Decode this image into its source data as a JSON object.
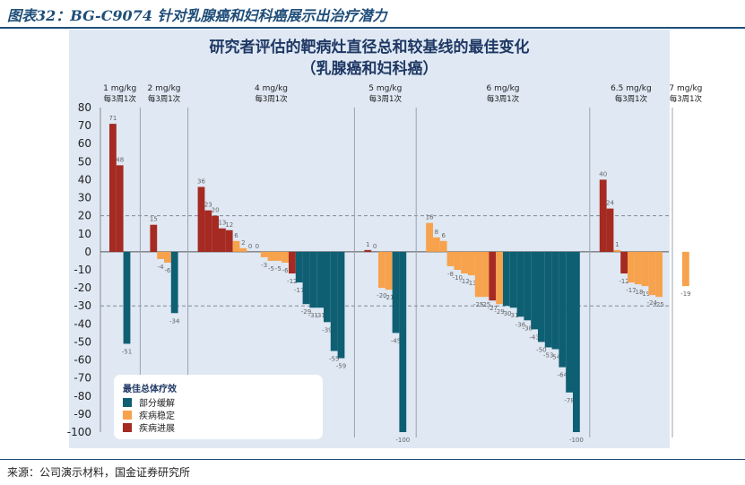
{
  "figure_title": "图表32：BG-C9074 针对乳腺癌和妇科癌展示出治疗潜力",
  "source": "来源：公司演示材料，国金证券研究所",
  "chart_data": {
    "type": "bar",
    "title": "研究者评估的靶病灶直径总和较基线的最佳变化",
    "subtitle": "（乳腺癌和妇科癌）",
    "ylim": [
      -100,
      80
    ],
    "yticks": [
      80,
      70,
      60,
      50,
      40,
      30,
      20,
      10,
      0,
      -10,
      -20,
      -30,
      -40,
      -50,
      -60,
      -70,
      -80,
      -90,
      -100
    ],
    "reference_lines": [
      20,
      -30
    ],
    "legend": {
      "title": "最佳总体疗效",
      "entries": [
        {
          "name": "部分缓解",
          "color": "#0f5f73"
        },
        {
          "name": "疾病稳定",
          "color": "#f7a24c"
        },
        {
          "name": "疾病进展",
          "color": "#a52a22"
        }
      ],
      "position": "bottom-left"
    },
    "groups": [
      {
        "dose": "1 mg/kg",
        "schedule": "每3周1次",
        "values": [
          71,
          48,
          -51
        ],
        "types": [
          "PD",
          "PD",
          "PR"
        ],
        "labels": [
          "71",
          "48",
          "-51"
        ]
      },
      {
        "dose": "2 mg/kg",
        "schedule": "每3周1次",
        "values": [
          15,
          -4,
          -6,
          -34
        ],
        "types": [
          "PD",
          "SD",
          "SD",
          "PR"
        ],
        "labels": [
          "15",
          "-4",
          "-6",
          "-34"
        ]
      },
      {
        "dose": "4 mg/kg",
        "schedule": "每3周1次",
        "values": [
          36,
          23,
          20,
          13,
          12,
          6,
          2,
          0,
          0,
          -3,
          -5,
          -5,
          -6,
          -12,
          -17,
          -29,
          -31,
          -31,
          -39,
          -55,
          -59
        ],
        "types": [
          "PD",
          "PD",
          "PD",
          "PD",
          "PD",
          "SD",
          "SD",
          "SD",
          "SD",
          "SD",
          "SD",
          "SD",
          "SD",
          "PD",
          "PR",
          "PR",
          "PR",
          "PR",
          "PR",
          "PR",
          "PR"
        ],
        "labels": [
          "36",
          "23",
          "20",
          "13",
          "12",
          "6",
          "2",
          "0",
          "0",
          "-3",
          "-5",
          "-5",
          "-6",
          "-12",
          "-17",
          "-29",
          "-31",
          "-31",
          "-39",
          "-55",
          "-59"
        ]
      },
      {
        "dose": "5 mg/kg",
        "schedule": "每3周1次",
        "values": [
          1,
          0,
          -20,
          -21,
          -45,
          -100
        ],
        "types": [
          "PD",
          "SD",
          "SD",
          "SD",
          "PR",
          "PR"
        ],
        "labels": [
          "1",
          "0",
          "-20",
          "-21",
          "-45",
          "-100"
        ]
      },
      {
        "dose": "6 mg/kg",
        "schedule": "每3周1次",
        "values": [
          16,
          8,
          6,
          -8,
          -10,
          -12,
          -13,
          -25,
          -25,
          -27,
          -29,
          -30,
          -31,
          -36,
          -38,
          -43,
          -50,
          -53,
          -54,
          -64,
          -78,
          -100
        ],
        "types": [
          "SD",
          "SD",
          "SD",
          "SD",
          "SD",
          "SD",
          "SD",
          "SD",
          "SD",
          "PD",
          "SD",
          "PR",
          "PR",
          "PR",
          "PR",
          "PR",
          "PR",
          "PR",
          "PR",
          "PR",
          "PR",
          "PR"
        ],
        "labels": [
          "16",
          "8",
          "6",
          "-8",
          "-10",
          "-12",
          "-13",
          "-25",
          "-25",
          "-27",
          "-29",
          "-30",
          "-31",
          "-36",
          "-38",
          "-43",
          "-50",
          "-53",
          "-54",
          "-64",
          "-78",
          "-100"
        ]
      },
      {
        "dose": "6.5 mg/kg",
        "schedule": "每3周1次",
        "values": [
          40,
          24,
          1,
          -12,
          -17,
          -18,
          -19,
          -24,
          -25
        ],
        "types": [
          "PD",
          "PD",
          "SD",
          "PD",
          "SD",
          "SD",
          "SD",
          "SD",
          "SD"
        ],
        "labels": [
          "40",
          "24",
          "1",
          "-12",
          "-17",
          "-18",
          "-19",
          "-24",
          "-25"
        ]
      },
      {
        "dose": "7 mg/kg",
        "schedule": "每3周1次",
        "values": [
          -19
        ],
        "types": [
          "SD"
        ],
        "labels": [
          "-19"
        ]
      }
    ]
  }
}
